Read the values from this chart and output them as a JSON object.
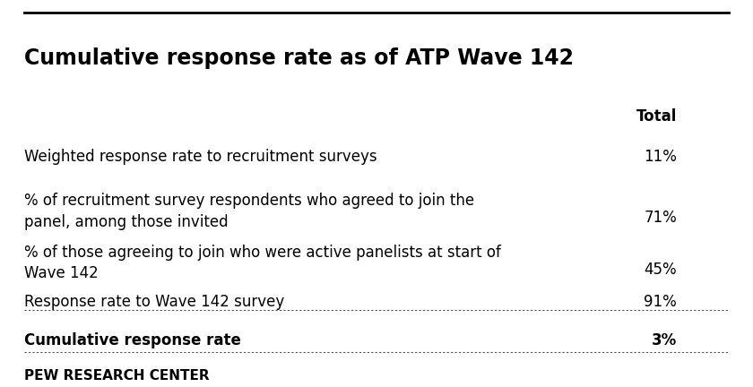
{
  "title": "Cumulative response rate as of ATP Wave 142",
  "col_header": "Total",
  "rows": [
    {
      "label": "Weighted response rate to recruitment surveys",
      "value": "11%",
      "bold": false,
      "multiline": false
    },
    {
      "label": "% of recruitment survey respondents who agreed to join the\npanel, among those invited",
      "value": "71%",
      "bold": false,
      "multiline": true
    },
    {
      "label": "% of those agreeing to join who were active panelists at start of\nWave 142",
      "value": "45%",
      "bold": false,
      "multiline": true
    },
    {
      "label": "Response rate to Wave 142 survey",
      "value": "91%",
      "bold": false,
      "multiline": false
    },
    {
      "label": "Cumulative response rate",
      "value": "3%",
      "bold": true,
      "multiline": false
    }
  ],
  "footer": "PEW RESEARCH CENTER",
  "bg_color": "#ffffff",
  "text_color": "#000000",
  "border_color": "#000000",
  "title_fontsize": 17,
  "header_fontsize": 12,
  "row_fontsize": 12,
  "footer_fontsize": 11
}
